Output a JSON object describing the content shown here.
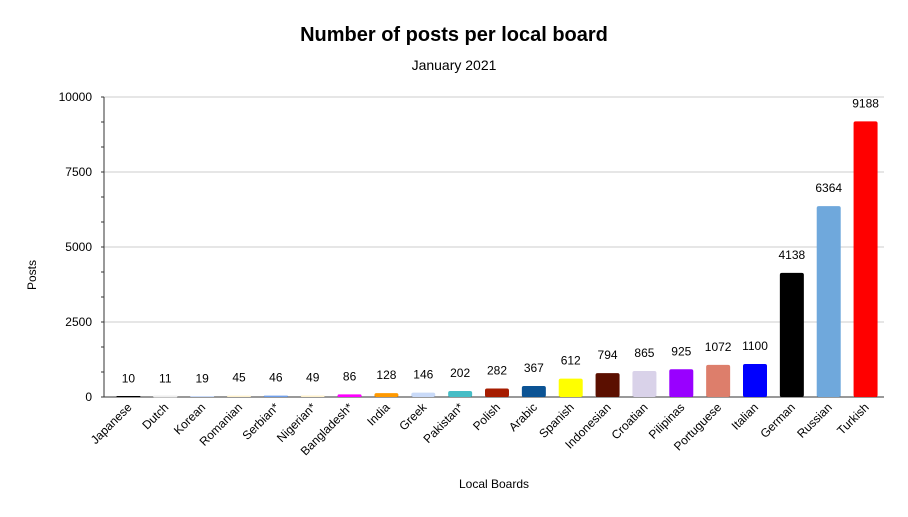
{
  "chart_data": {
    "type": "bar",
    "title": "Number of posts per local board",
    "subtitle": "January 2021",
    "xlabel": "Local Boards",
    "ylabel": "Posts",
    "ylim": [
      0,
      10000
    ],
    "yticks": [
      0,
      2500,
      5000,
      7500,
      10000
    ],
    "grid": true,
    "legend": "none",
    "categories": [
      "Japanese",
      "Dutch",
      "Korean",
      "Romanian",
      "Serbian*",
      "Nigerian*",
      "Bangladesh*",
      "India",
      "Greek",
      "Pakistan*",
      "Polish",
      "Arabic",
      "Spanish",
      "Indonesian",
      "Croatian",
      "Pilipinas",
      "Portuguese",
      "Italian",
      "German",
      "Russian",
      "Turkish"
    ],
    "values": [
      10,
      11,
      19,
      45,
      46,
      49,
      86,
      128,
      146,
      202,
      282,
      367,
      612,
      794,
      865,
      925,
      1072,
      1100,
      4138,
      6364,
      9188
    ],
    "colors": [
      "#000000",
      "#ffffff",
      "#c9daf8",
      "#fff2cc",
      "#6d9eeb",
      "#fff2cc",
      "#ff00ff",
      "#ff9900",
      "#c9daf8",
      "#46bdc6",
      "#a61c00",
      "#0b5394",
      "#ffff00",
      "#5b0f00",
      "#d9d2e9",
      "#9900ff",
      "#dd7e6b",
      "#0000ff",
      "#000000",
      "#6fa8dc",
      "#ff0000"
    ]
  }
}
